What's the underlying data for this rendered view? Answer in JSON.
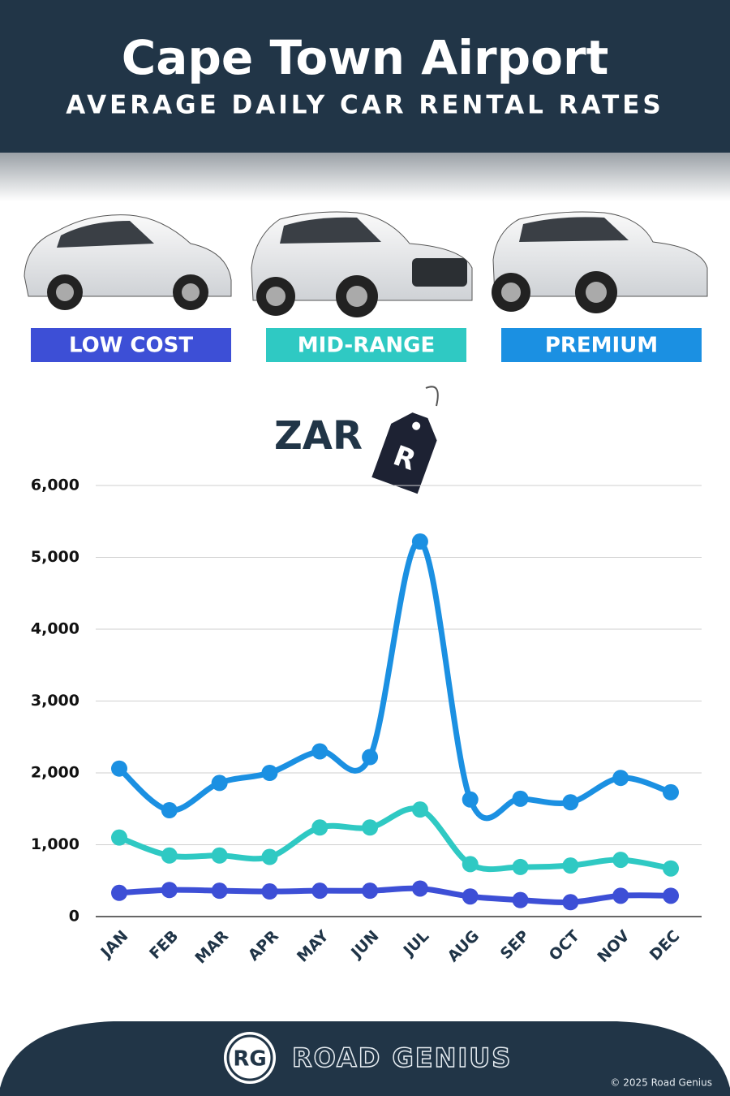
{
  "chart_data": {
    "type": "line",
    "title": "Cape Town Airport",
    "subtitle": "AVERAGE DAILY CAR RENTAL RATES",
    "y_label": "ZAR",
    "currency_symbol": "R",
    "categories": [
      "JAN",
      "FEB",
      "MAR",
      "APR",
      "MAY",
      "JUN",
      "JUL",
      "AUG",
      "SEP",
      "OCT",
      "NOV",
      "DEC"
    ],
    "series": [
      {
        "name": "LOW COST",
        "color": "#3d4fd6",
        "values": [
          330,
          370,
          360,
          350,
          360,
          360,
          390,
          280,
          230,
          200,
          290,
          290
        ]
      },
      {
        "name": "MID-RANGE",
        "color": "#2fc9c3",
        "values": [
          1100,
          850,
          850,
          830,
          1240,
          1240,
          1490,
          730,
          690,
          710,
          790,
          670
        ]
      },
      {
        "name": "PREMIUM",
        "color": "#1b90e2",
        "values": [
          2060,
          1480,
          1860,
          2000,
          2300,
          2220,
          5220,
          1630,
          1640,
          1590,
          1930,
          1730
        ]
      }
    ],
    "ylim": [
      0,
      6000
    ],
    "yticks": [
      0,
      {
        "value": 1000,
        "label": "1,000"
      },
      {
        "value": 2000,
        "label": "2,000"
      },
      {
        "value": 3000,
        "label": "3,000"
      },
      {
        "value": 4000,
        "label": "4,000"
      },
      {
        "value": 5000,
        "label": "5,000"
      },
      {
        "value": 6000,
        "label": "6,000"
      }
    ],
    "grid": true
  },
  "footer": {
    "logo": "RG",
    "brand": "ROAD GENIUS",
    "copyright": "© 2025 Road Genius"
  }
}
